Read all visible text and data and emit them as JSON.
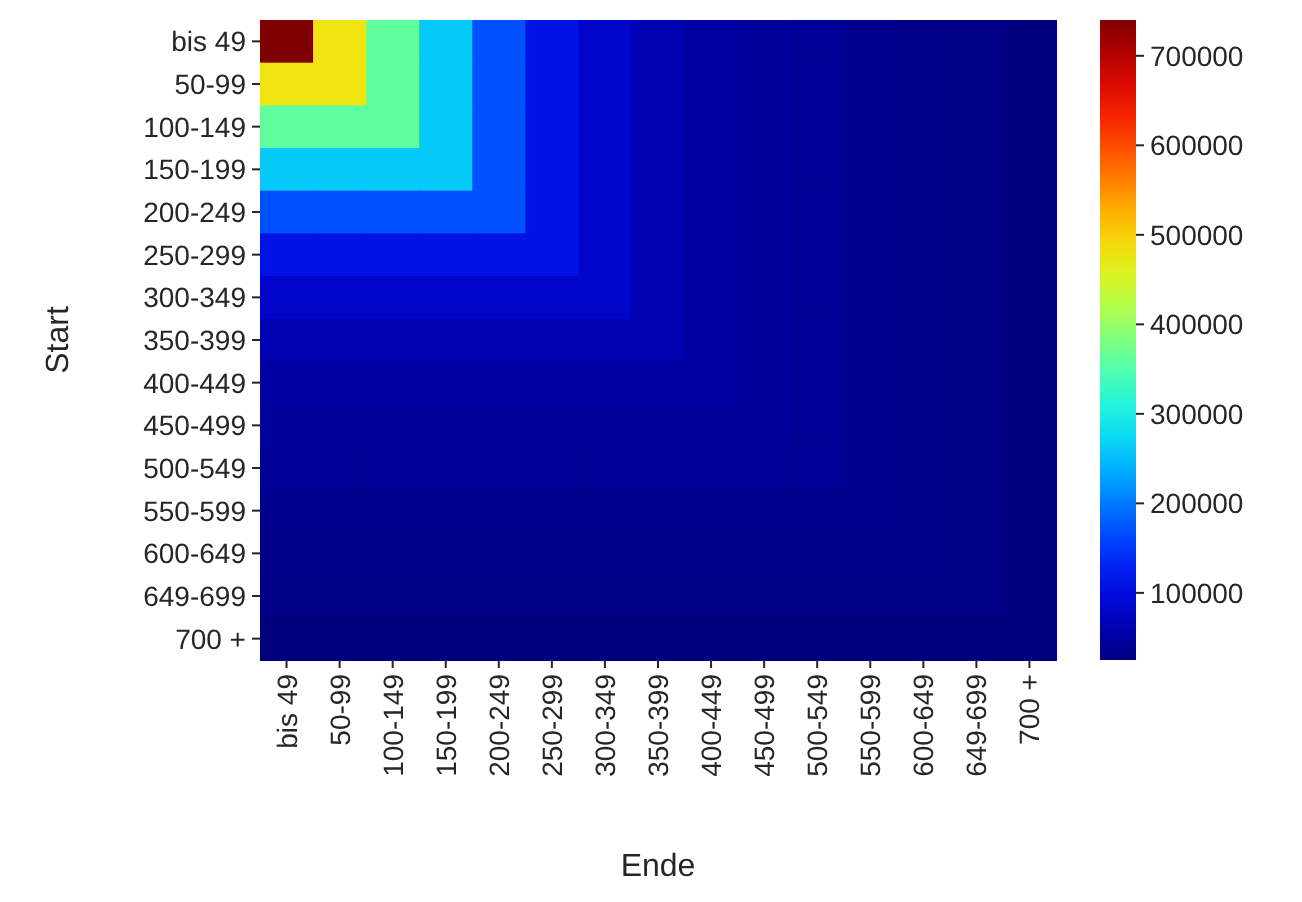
{
  "chart_data": {
    "type": "heatmap",
    "xlabel": "Ende",
    "ylabel": "Start",
    "categories": [
      "bis 49",
      "50-99",
      "100-149",
      "150-199",
      "200-249",
      "250-299",
      "300-349",
      "350-399",
      "400-449",
      "450-499",
      "500-549",
      "550-599",
      "600-649",
      "649-699",
      "700 +"
    ],
    "y_categories": [
      "bis 49",
      "50-99",
      "100-149",
      "150-199",
      "200-249",
      "250-299",
      "300-349",
      "350-399",
      "400-449",
      "450-499",
      "500-549",
      "550-599",
      "600-649",
      "649-699",
      "700 +"
    ],
    "cells": [
      [
        740000,
        480000,
        360000,
        260000,
        170000,
        110000,
        80000,
        60000,
        50000,
        45000,
        40000,
        35000,
        32000,
        30000,
        25000
      ],
      [
        480000,
        480000,
        360000,
        260000,
        170000,
        110000,
        80000,
        60000,
        50000,
        45000,
        40000,
        35000,
        32000,
        30000,
        25000
      ],
      [
        360000,
        360000,
        360000,
        260000,
        170000,
        110000,
        80000,
        60000,
        50000,
        45000,
        40000,
        35000,
        32000,
        30000,
        25000
      ],
      [
        260000,
        260000,
        260000,
        260000,
        170000,
        110000,
        80000,
        60000,
        50000,
        45000,
        40000,
        35000,
        32000,
        30000,
        25000
      ],
      [
        170000,
        170000,
        170000,
        170000,
        170000,
        110000,
        80000,
        60000,
        50000,
        45000,
        40000,
        35000,
        32000,
        30000,
        25000
      ],
      [
        110000,
        110000,
        110000,
        110000,
        110000,
        110000,
        80000,
        60000,
        50000,
        45000,
        40000,
        35000,
        32000,
        30000,
        25000
      ],
      [
        80000,
        80000,
        80000,
        80000,
        80000,
        80000,
        80000,
        60000,
        50000,
        45000,
        40000,
        35000,
        32000,
        30000,
        25000
      ],
      [
        60000,
        60000,
        60000,
        60000,
        60000,
        60000,
        60000,
        60000,
        50000,
        45000,
        40000,
        35000,
        32000,
        30000,
        25000
      ],
      [
        50000,
        50000,
        50000,
        50000,
        50000,
        50000,
        50000,
        50000,
        50000,
        45000,
        40000,
        35000,
        32000,
        30000,
        25000
      ],
      [
        45000,
        45000,
        45000,
        45000,
        45000,
        45000,
        45000,
        45000,
        45000,
        45000,
        40000,
        35000,
        32000,
        30000,
        25000
      ],
      [
        40000,
        40000,
        40000,
        40000,
        40000,
        40000,
        40000,
        40000,
        40000,
        40000,
        40000,
        35000,
        32000,
        30000,
        25000
      ],
      [
        35000,
        35000,
        35000,
        35000,
        35000,
        35000,
        35000,
        35000,
        35000,
        35000,
        35000,
        35000,
        32000,
        30000,
        25000
      ],
      [
        32000,
        32000,
        32000,
        32000,
        32000,
        32000,
        32000,
        32000,
        32000,
        32000,
        32000,
        32000,
        32000,
        30000,
        25000
      ],
      [
        30000,
        30000,
        30000,
        30000,
        30000,
        30000,
        30000,
        30000,
        30000,
        30000,
        30000,
        30000,
        30000,
        30000,
        25000
      ],
      [
        25000,
        25000,
        25000,
        25000,
        25000,
        25000,
        25000,
        25000,
        25000,
        25000,
        25000,
        25000,
        25000,
        25000,
        25000
      ]
    ],
    "clim": [
      25000,
      740000
    ],
    "cticks": [
      100000,
      200000,
      300000,
      400000,
      500000,
      600000,
      700000
    ]
  }
}
